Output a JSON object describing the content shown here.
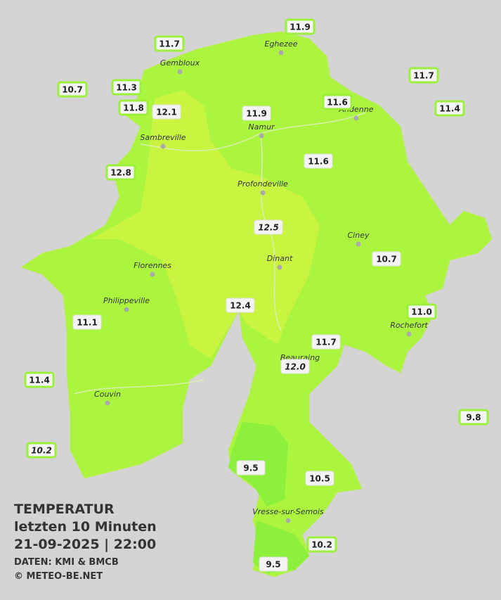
{
  "title": {
    "lines": [
      "TEMPERATUR",
      "letzten 10 Minuten",
      "21-09-2025  |  22:00"
    ]
  },
  "credits": [
    "DATEN: KMI & BMCB",
    "© METEO-BE.NET"
  ],
  "cities": [
    "Gembloux",
    "Eghezee",
    "Andenne",
    "Namur",
    "Sambreville",
    "Profondeville",
    "Ciney",
    "Dinant",
    "Florennes",
    "Philippeville",
    "Rochefort",
    "Beauraing",
    "Couvin",
    "Vresse-sur-Semois"
  ],
  "stations": [
    "11.9",
    "11.7",
    "10.7",
    "11.3",
    "11.8",
    "12.1",
    "11.9",
    "11.6",
    "11.7",
    "11.4",
    "11.6",
    "12.8",
    "12.5",
    "10.7",
    "12.4",
    "11.0",
    "11.1",
    "11.7",
    "12.0",
    "11.4",
    "9.8",
    "10.2",
    "9.5",
    "10.5",
    "10.2",
    "9.5"
  ]
}
